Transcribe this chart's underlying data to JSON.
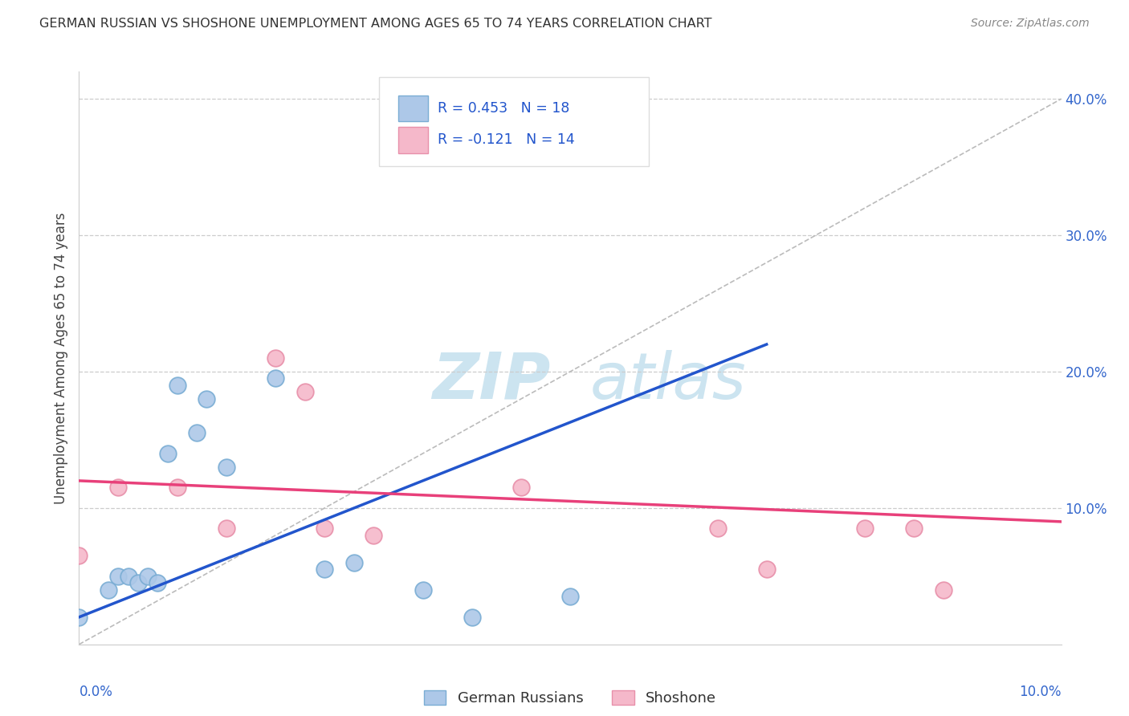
{
  "title": "GERMAN RUSSIAN VS SHOSHONE UNEMPLOYMENT AMONG AGES 65 TO 74 YEARS CORRELATION CHART",
  "source": "Source: ZipAtlas.com",
  "ylabel": "Unemployment Among Ages 65 to 74 years",
  "ylabel_right_vals": [
    0,
    0.1,
    0.2,
    0.3,
    0.4
  ],
  "xmin": 0.0,
  "xmax": 0.1,
  "ymin": 0.0,
  "ymax": 0.42,
  "legend1_label": "R = 0.453   N = 18",
  "legend2_label": "R = -0.121   N = 14",
  "german_russian_x": [
    0.0,
    0.003,
    0.004,
    0.005,
    0.006,
    0.007,
    0.008,
    0.009,
    0.01,
    0.012,
    0.013,
    0.015,
    0.02,
    0.025,
    0.028,
    0.035,
    0.04,
    0.05
  ],
  "german_russian_y": [
    0.02,
    0.04,
    0.05,
    0.05,
    0.045,
    0.05,
    0.045,
    0.14,
    0.19,
    0.155,
    0.18,
    0.13,
    0.195,
    0.055,
    0.06,
    0.04,
    0.02,
    0.035
  ],
  "shoshone_x": [
    0.0,
    0.004,
    0.01,
    0.015,
    0.02,
    0.023,
    0.025,
    0.03,
    0.045,
    0.065,
    0.07,
    0.08,
    0.085,
    0.088
  ],
  "shoshone_y": [
    0.065,
    0.115,
    0.115,
    0.085,
    0.21,
    0.185,
    0.085,
    0.08,
    0.115,
    0.085,
    0.055,
    0.085,
    0.085,
    0.04
  ],
  "blue_line_x": [
    0.0,
    0.07
  ],
  "blue_line_y": [
    0.02,
    0.22
  ],
  "pink_line_x": [
    0.0,
    0.1
  ],
  "pink_line_y": [
    0.12,
    0.09
  ],
  "diag_line_x": [
    0.0,
    0.1
  ],
  "diag_line_y": [
    0.0,
    0.4
  ],
  "german_russian_color": "#adc8e8",
  "shoshone_color": "#f5b8ca",
  "german_russian_edge": "#7aadd4",
  "shoshone_edge": "#e890aa",
  "blue_line_color": "#2255cc",
  "pink_line_color": "#e8407a",
  "diag_line_color": "#bbbbbb",
  "background_color": "#ffffff",
  "watermark_zip": "ZIP",
  "watermark_atlas": "atlas",
  "watermark_color": "#cce4f0"
}
